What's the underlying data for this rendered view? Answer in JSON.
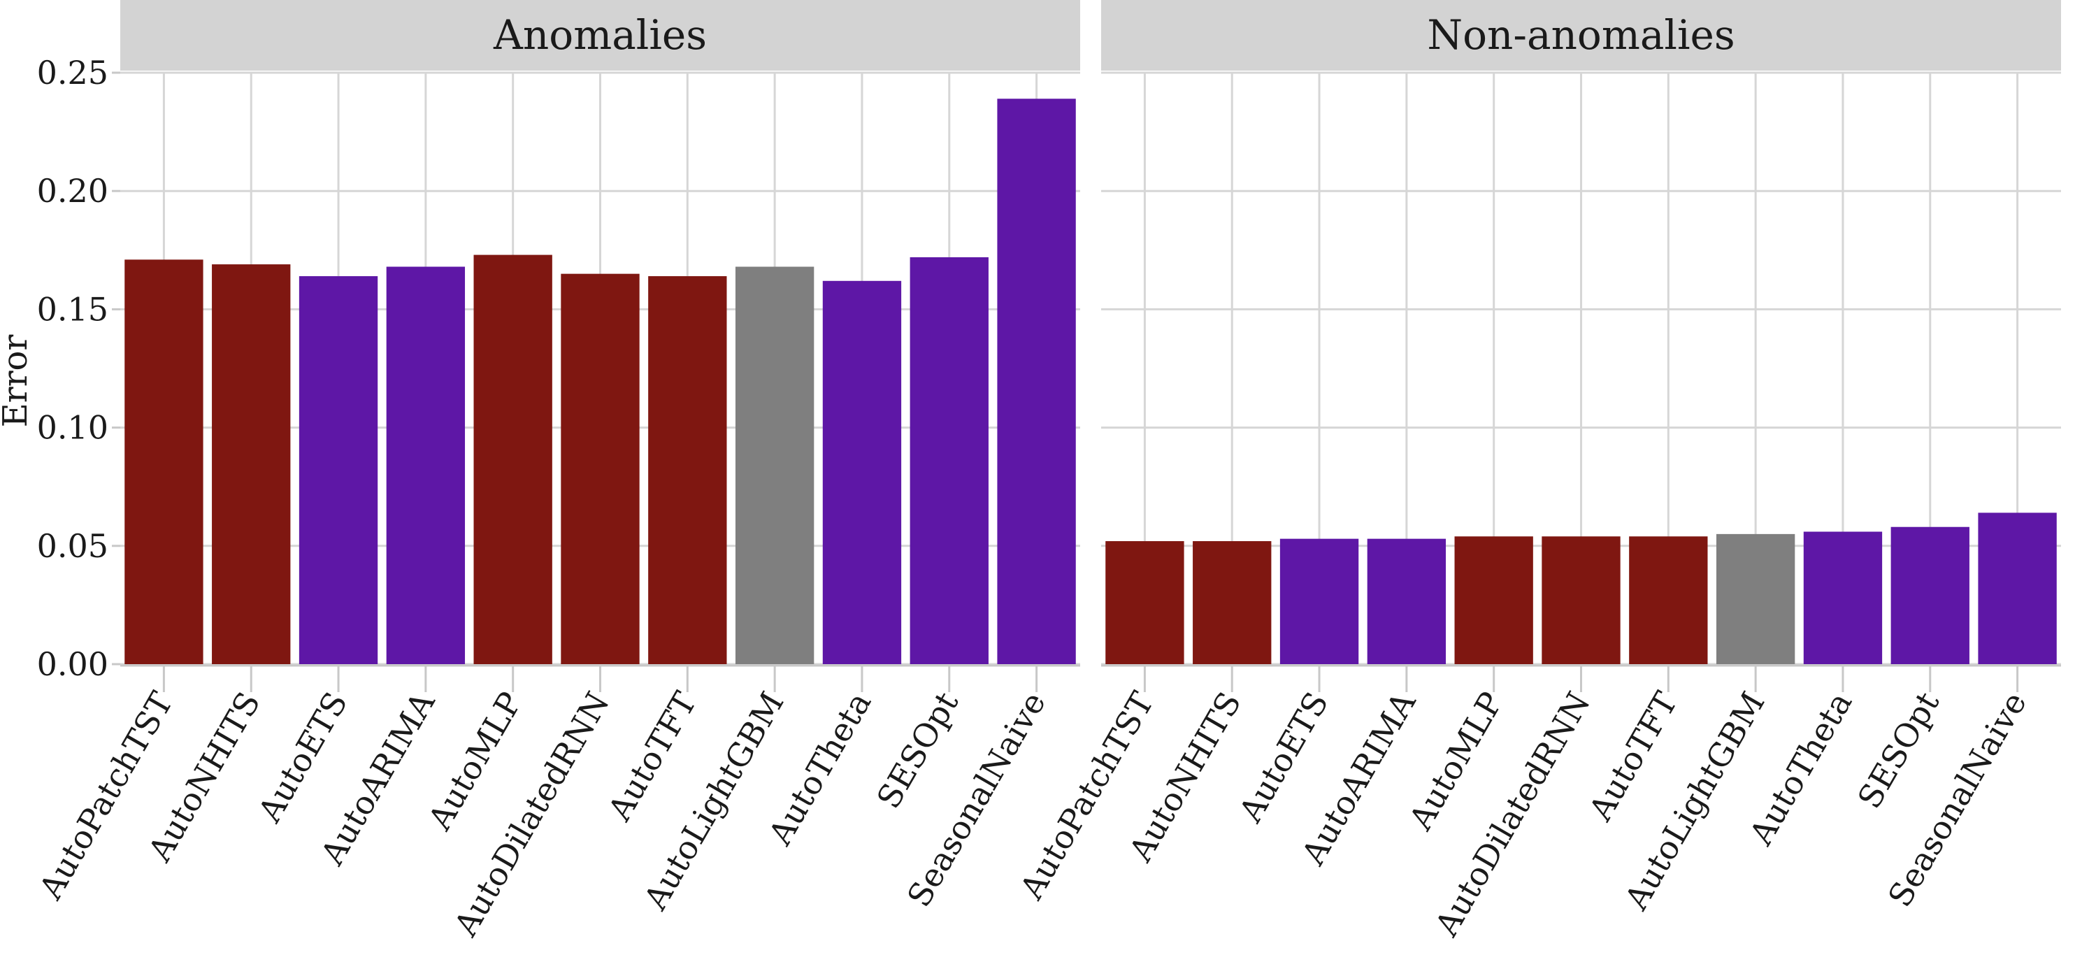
{
  "chart_data": {
    "type": "bar",
    "ylabel": "Error",
    "ylim": [
      0,
      0.25
    ],
    "yticks": [
      "0.00",
      "0.05",
      "0.10",
      "0.15",
      "0.20",
      "0.25"
    ],
    "y_tick_values": [
      0,
      0.05,
      0.1,
      0.15,
      0.2,
      0.25
    ],
    "grid": true,
    "colors": {
      "group_a": "#7f1711",
      "group_b": "#5e17a6",
      "group_c": "#7f7f7f",
      "strip_bg": "#d3d3d3",
      "grid": "#d6d6d6",
      "axis": "#c8c8c8"
    },
    "categories": [
      "AutoPatchTST",
      "AutoNHITS",
      "AutoETS",
      "AutoARIMA",
      "AutoMLP",
      "AutoDilatedRNN",
      "AutoTFT",
      "AutoLightGBM",
      "AutoTheta",
      "SESOpt",
      "SeasonalNaive"
    ],
    "panels": [
      {
        "title": "Anomalies",
        "values": [
          0.171,
          0.169,
          0.164,
          0.168,
          0.173,
          0.165,
          0.164,
          0.168,
          0.162,
          0.172,
          0.239
        ],
        "colors": [
          "group_a",
          "group_a",
          "group_b",
          "group_b",
          "group_a",
          "group_a",
          "group_a",
          "group_c",
          "group_b",
          "group_b",
          "group_b"
        ]
      },
      {
        "title": "Non-anomalies",
        "values": [
          0.052,
          0.052,
          0.053,
          0.053,
          0.054,
          0.054,
          0.054,
          0.055,
          0.056,
          0.058,
          0.064
        ],
        "colors": [
          "group_a",
          "group_a",
          "group_b",
          "group_b",
          "group_a",
          "group_a",
          "group_a",
          "group_c",
          "group_b",
          "group_b",
          "group_b"
        ]
      }
    ]
  }
}
